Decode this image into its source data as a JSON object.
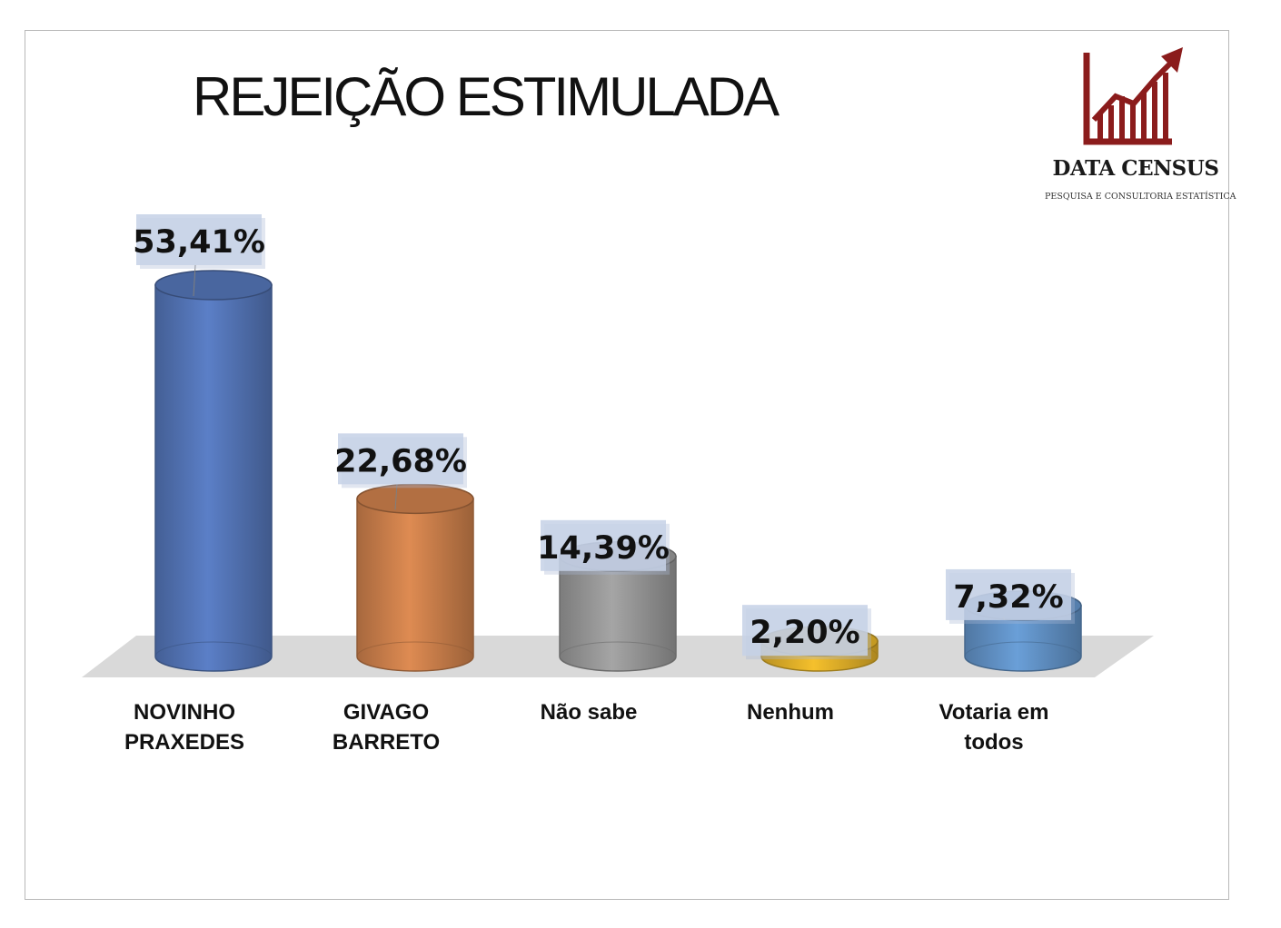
{
  "logo": {
    "name": "DATA CENSUS",
    "tagline": "PESQUISA E CONSULTORIA ESTATÍSTICA",
    "color": "#8b1c1c"
  },
  "chart_data": {
    "type": "bar",
    "title": "REJEIÇÃO ESTIMULADA",
    "categories": [
      [
        "NOVINHO",
        "PRAXEDES"
      ],
      [
        "GIVAGO",
        "BARRETO"
      ],
      [
        "Não sabe"
      ],
      [
        "Nenhum"
      ],
      [
        "Votaria em",
        "todos"
      ]
    ],
    "values": [
      53.41,
      22.68,
      14.39,
      2.2,
      7.32
    ],
    "data_labels": [
      "53,41%",
      "22,68%",
      "14,39%",
      "2,20%",
      "7,32%"
    ],
    "colors": [
      "#5b7fc7",
      "#de8b52",
      "#a5a5a5",
      "#f5c02c",
      "#6a9fd8"
    ],
    "grid": false,
    "legend": "none"
  }
}
